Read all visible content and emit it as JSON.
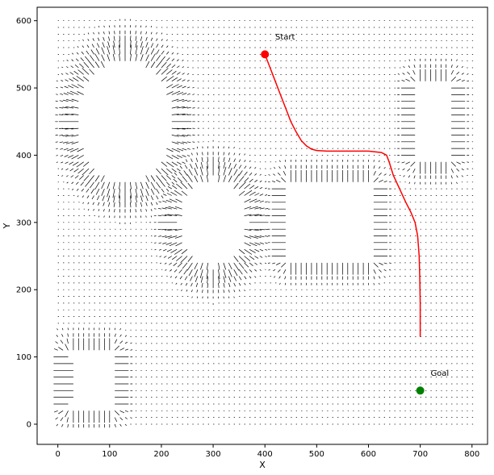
{
  "chart_data": {
    "type": "quiver",
    "title": "",
    "xlabel": "X",
    "ylabel": "Y",
    "xlim": [
      -40,
      830
    ],
    "ylim": [
      -30,
      620
    ],
    "xticks": [
      0,
      100,
      200,
      300,
      400,
      500,
      600,
      700,
      800
    ],
    "yticks": [
      0,
      100,
      200,
      300,
      400,
      500,
      600
    ],
    "grid": false,
    "field": {
      "x_range": [
        0,
        800
      ],
      "y_range": [
        0,
        600
      ],
      "color": "#000000"
    },
    "obstacles": [
      {
        "shape": "ellipse",
        "cx": 130,
        "cy": 450,
        "rx": 95,
        "ry": 100
      },
      {
        "shape": "ellipse",
        "cx": 300,
        "cy": 300,
        "rx": 70,
        "ry": 70
      },
      {
        "shape": "rect",
        "x0": 450,
        "y0": 250,
        "x1": 600,
        "y1": 350
      },
      {
        "shape": "rect",
        "x0": 700,
        "y0": 400,
        "x1": 750,
        "y1": 500
      },
      {
        "shape": "rect",
        "x0": 25,
        "y0": 30,
        "x1": 100,
        "y1": 100
      }
    ],
    "path": {
      "color": "#ff0000",
      "points": [
        [
          400,
          550
        ],
        [
          410,
          530
        ],
        [
          420,
          510
        ],
        [
          430,
          490
        ],
        [
          440,
          470
        ],
        [
          450,
          450
        ],
        [
          460,
          435
        ],
        [
          470,
          422
        ],
        [
          480,
          414
        ],
        [
          490,
          409
        ],
        [
          500,
          407
        ],
        [
          520,
          406
        ],
        [
          560,
          406
        ],
        [
          600,
          406
        ],
        [
          625,
          404
        ],
        [
          635,
          400
        ],
        [
          640,
          390
        ],
        [
          648,
          370
        ],
        [
          660,
          350
        ],
        [
          672,
          330
        ],
        [
          682,
          315
        ],
        [
          690,
          300
        ],
        [
          695,
          280
        ],
        [
          698,
          250
        ],
        [
          699,
          220
        ],
        [
          700,
          180
        ],
        [
          700,
          130
        ]
      ]
    },
    "start": {
      "x": 400,
      "y": 550,
      "label": "Start",
      "color": "#ff0000"
    },
    "goal": {
      "x": 700,
      "y": 50,
      "label": "Goal",
      "color": "#008000"
    }
  }
}
